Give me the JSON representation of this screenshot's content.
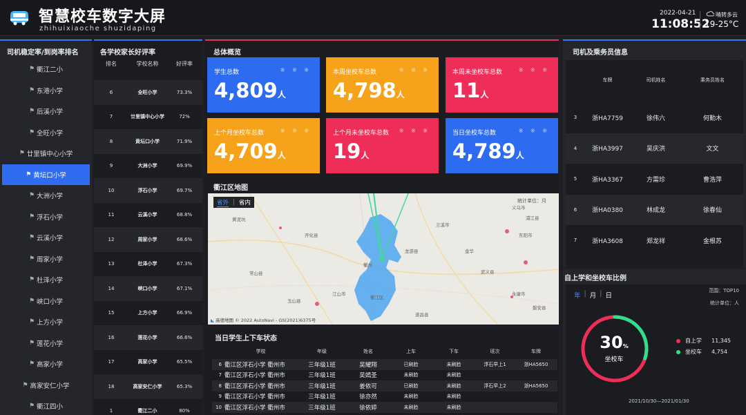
{
  "header": {
    "title": "智慧校车数字大屏",
    "subtitle": "zhihuixiaoche shuzidaping",
    "date": "2022-04-21",
    "time": "11:08:52",
    "weather": "晴转多云",
    "temperature": "19-25°C"
  },
  "stability": {
    "title": "司机稳定率/到岗率排名",
    "items": [
      {
        "label": "衢江二小",
        "icon": "school-icon",
        "active": false
      },
      {
        "label": "东港小学",
        "icon": "school-icon",
        "active": false
      },
      {
        "label": "后溪小学",
        "icon": "school-icon",
        "active": false
      },
      {
        "label": "全旺小学",
        "icon": "school-icon",
        "active": false
      },
      {
        "label": "廿里镇中心小学",
        "icon": "school-icon",
        "active": false
      },
      {
        "label": "黄坛口小学",
        "icon": "school-icon",
        "active": true
      },
      {
        "label": "大洲小学",
        "icon": "school-icon",
        "active": false
      },
      {
        "label": "浮石小学",
        "icon": "school-icon",
        "active": false
      },
      {
        "label": "云溪小学",
        "icon": "school-icon",
        "active": false
      },
      {
        "label": "周家小学",
        "icon": "school-icon",
        "active": false
      },
      {
        "label": "杜泽小学",
        "icon": "school-icon",
        "active": false
      },
      {
        "label": "峡口小学",
        "icon": "school-icon",
        "active": false
      },
      {
        "label": "上方小学",
        "icon": "school-icon",
        "active": false
      },
      {
        "label": "莲花小学",
        "icon": "school-icon",
        "active": false
      },
      {
        "label": "高家小学",
        "icon": "school-icon",
        "active": false
      },
      {
        "label": "高家安仁小学",
        "icon": "school-icon",
        "active": false
      },
      {
        "label": "衢江四小",
        "icon": "school-icon",
        "active": false
      }
    ]
  },
  "rating": {
    "title": "各学校家长好评率",
    "headers": [
      "排名",
      "学校名称",
      "好评率"
    ],
    "rows": [
      [
        "6",
        "全旺小学",
        "73.3%"
      ],
      [
        "7",
        "廿里镇中心小学",
        "72%"
      ],
      [
        "8",
        "黄坛口小学",
        "71.9%"
      ],
      [
        "9",
        "大洲小学",
        "69.9%"
      ],
      [
        "10",
        "浮石小学",
        "69.7%"
      ],
      [
        "11",
        "云溪小学",
        "68.8%"
      ],
      [
        "12",
        "周家小学",
        "68.6%"
      ],
      [
        "13",
        "杜泽小学",
        "67.3%"
      ],
      [
        "14",
        "峡口小学",
        "67.1%"
      ],
      [
        "15",
        "上方小学",
        "66.9%"
      ],
      [
        "16",
        "莲花小学",
        "66.6%"
      ],
      [
        "17",
        "高家小学",
        "65.5%"
      ],
      [
        "18",
        "高家安仁小学",
        "65.3%"
      ],
      [
        "1",
        "衢江二小",
        "80%"
      ]
    ]
  },
  "overview": {
    "title": "总体概览",
    "cards": [
      {
        "label": "学生总数",
        "value": "4,809",
        "unit": "人",
        "color": "#2d6cf0"
      },
      {
        "label": "本周坐校车总数",
        "value": "4,798",
        "unit": "人",
        "color": "#f7a21b"
      },
      {
        "label": "本周未坐校车总数",
        "value": "11",
        "unit": "人",
        "color": "#ee2e58"
      },
      {
        "label": "上个月坐校车总数",
        "value": "4,709",
        "unit": "人",
        "color": "#f7a21b"
      },
      {
        "label": "上个月未坐校车总数",
        "value": "19",
        "unit": "人",
        "color": "#ee2e58"
      },
      {
        "label": "当日坐校车总数",
        "value": "4,789",
        "unit": "人",
        "color": "#2d6cf0"
      }
    ],
    "dots": "※ ※ ※"
  },
  "map": {
    "title": "衢江区地图",
    "tab_out": "省外",
    "tab_in": "省内",
    "legend": "统计单位：月",
    "attribution": "© 2022 AutoNavi - GS(2021)6375号",
    "logo": "高德地图",
    "labels": [
      "黄泥坑",
      "开化县",
      "兰溪市",
      "龙游县",
      "金华",
      "武义县",
      "江山市",
      "玉山县",
      "遂昌县",
      "衢江区",
      "衢州",
      "义乌市",
      "永康市",
      "东阳市",
      "浦江县",
      "常山县",
      "磐安县"
    ]
  },
  "status": {
    "title": "当日学生上下车状态",
    "headers": [
      "学校",
      "年级",
      "姓名",
      "上车",
      "下车",
      "班次",
      "车牌"
    ],
    "rows": [
      [
        "6",
        "衢江区浮石小学 衢州市",
        "三年级1班",
        "吴耀翔",
        "已刷脸",
        "未刷脸",
        "浮石早上1",
        "浙HA5650"
      ],
      [
        "7",
        "衢江区浮石小学 衢州市",
        "三年级1班",
        "吴嫣圣",
        "未刷脸",
        "未刷脸",
        "",
        ""
      ],
      [
        "8",
        "衢江区浮石小学 衢州市",
        "三年级1班",
        "姜依可",
        "已刷脸",
        "未刷脸",
        "浮石早上2",
        "浙HA5650"
      ],
      [
        "9",
        "衢江区浮石小学 衢州市",
        "三年级1班",
        "徐亦然",
        "未刷脸",
        "未刷脸",
        "",
        ""
      ],
      [
        "10",
        "衢江区浮石小学 衢州市",
        "三年级1班",
        "徐依婷",
        "未刷脸",
        "未刷脸",
        "",
        ""
      ]
    ]
  },
  "drivers": {
    "title": "司机及乘务员信息",
    "headers": [
      "车牌",
      "司机姓名",
      "乘务员姓名"
    ],
    "rows": [
      [
        "3",
        "浙HA7759",
        "徐伟六",
        "何勤木"
      ],
      [
        "4",
        "浙HA3997",
        "吴庆洪",
        "文文"
      ],
      [
        "5",
        "浙HA3367",
        "方需珍",
        "曹浩萍"
      ],
      [
        "6",
        "浙HA0380",
        "林成龙",
        "徐春仙"
      ],
      [
        "7",
        "浙HA3608",
        "郑龙祥",
        "金根苏"
      ]
    ]
  },
  "ratio": {
    "title": "自上学和坐校车比例",
    "tab_year": "年",
    "tab_month": "月",
    "tab_day": "日",
    "range": "范围：TOP10",
    "unit": "统计单位：人",
    "center_value": "30",
    "center_pct": "%",
    "center_label": "坐校车",
    "percent": 30,
    "legend": [
      {
        "label": "自上学",
        "value": "11,345",
        "color": "#ee2e58"
      },
      {
        "label": "坐校车",
        "value": "4,754",
        "color": "#2ee08a"
      }
    ],
    "date_range": "2021/10/30—2021/01/30"
  }
}
